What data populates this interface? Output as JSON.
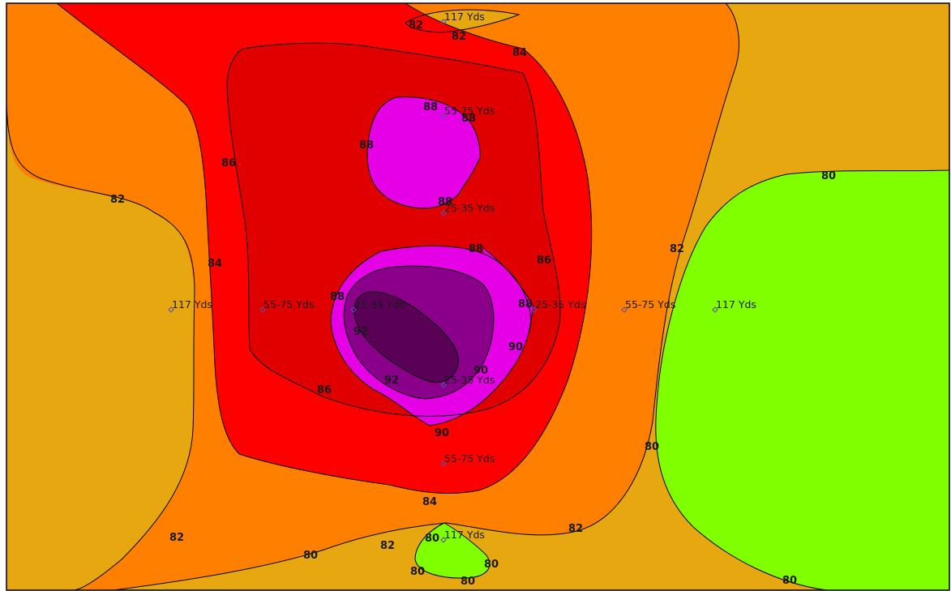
{
  "colors": {
    "level_80": "#80ff00",
    "level_82": "#e6a711",
    "level_84": "#ff8000",
    "level_86": "#ff0000",
    "level_88": "#e00000",
    "level_90": "#e600e6",
    "level_92": "#8a008a",
    "level_94": "#5a0057",
    "border": "#000000"
  },
  "contour_labels": [
    "82",
    "82",
    "84",
    "86",
    "88",
    "88",
    "88",
    "88",
    "82",
    "84",
    "88",
    "86",
    "88",
    "92",
    "88",
    "90",
    "90",
    "92",
    "86",
    "90",
    "82",
    "84",
    "80",
    "80",
    "82",
    "82",
    "82",
    "80",
    "80",
    "80",
    "80",
    "80"
  ],
  "stations": [
    "117 Yds",
    "55-75 Yds",
    "25-35 Yds",
    "117 Yds",
    "55-75 Yds",
    "25-35 Yds",
    "25-35 Yds",
    "55-75 Yds",
    "117 Yds",
    "25-35 Yds",
    "55-75 Yds",
    "117 Yds"
  ]
}
